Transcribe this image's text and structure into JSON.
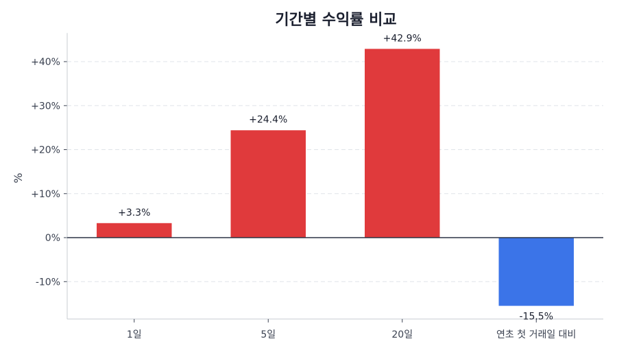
{
  "chart_data": {
    "type": "bar",
    "title": "기간별 수익률 비교",
    "xlabel": "",
    "ylabel": "%",
    "categories": [
      "1일",
      "5일",
      "20일",
      "연초 첫 거래일 대비"
    ],
    "values": [
      3.3,
      24.4,
      42.9,
      -15.5
    ],
    "value_labels": [
      "+3.3%",
      "+24.4%",
      "+42.9%",
      "-15.5%"
    ],
    "ylim": [
      -18.5,
      46.5
    ],
    "yticks": [
      -10,
      0,
      10,
      20,
      30,
      40
    ],
    "ytick_labels": [
      "-10%",
      "0%",
      "+10%",
      "+20%",
      "+30%",
      "+40%"
    ],
    "grid": true,
    "colors": {
      "positive": "#e03a3c",
      "negative": "#3b74e8"
    }
  }
}
